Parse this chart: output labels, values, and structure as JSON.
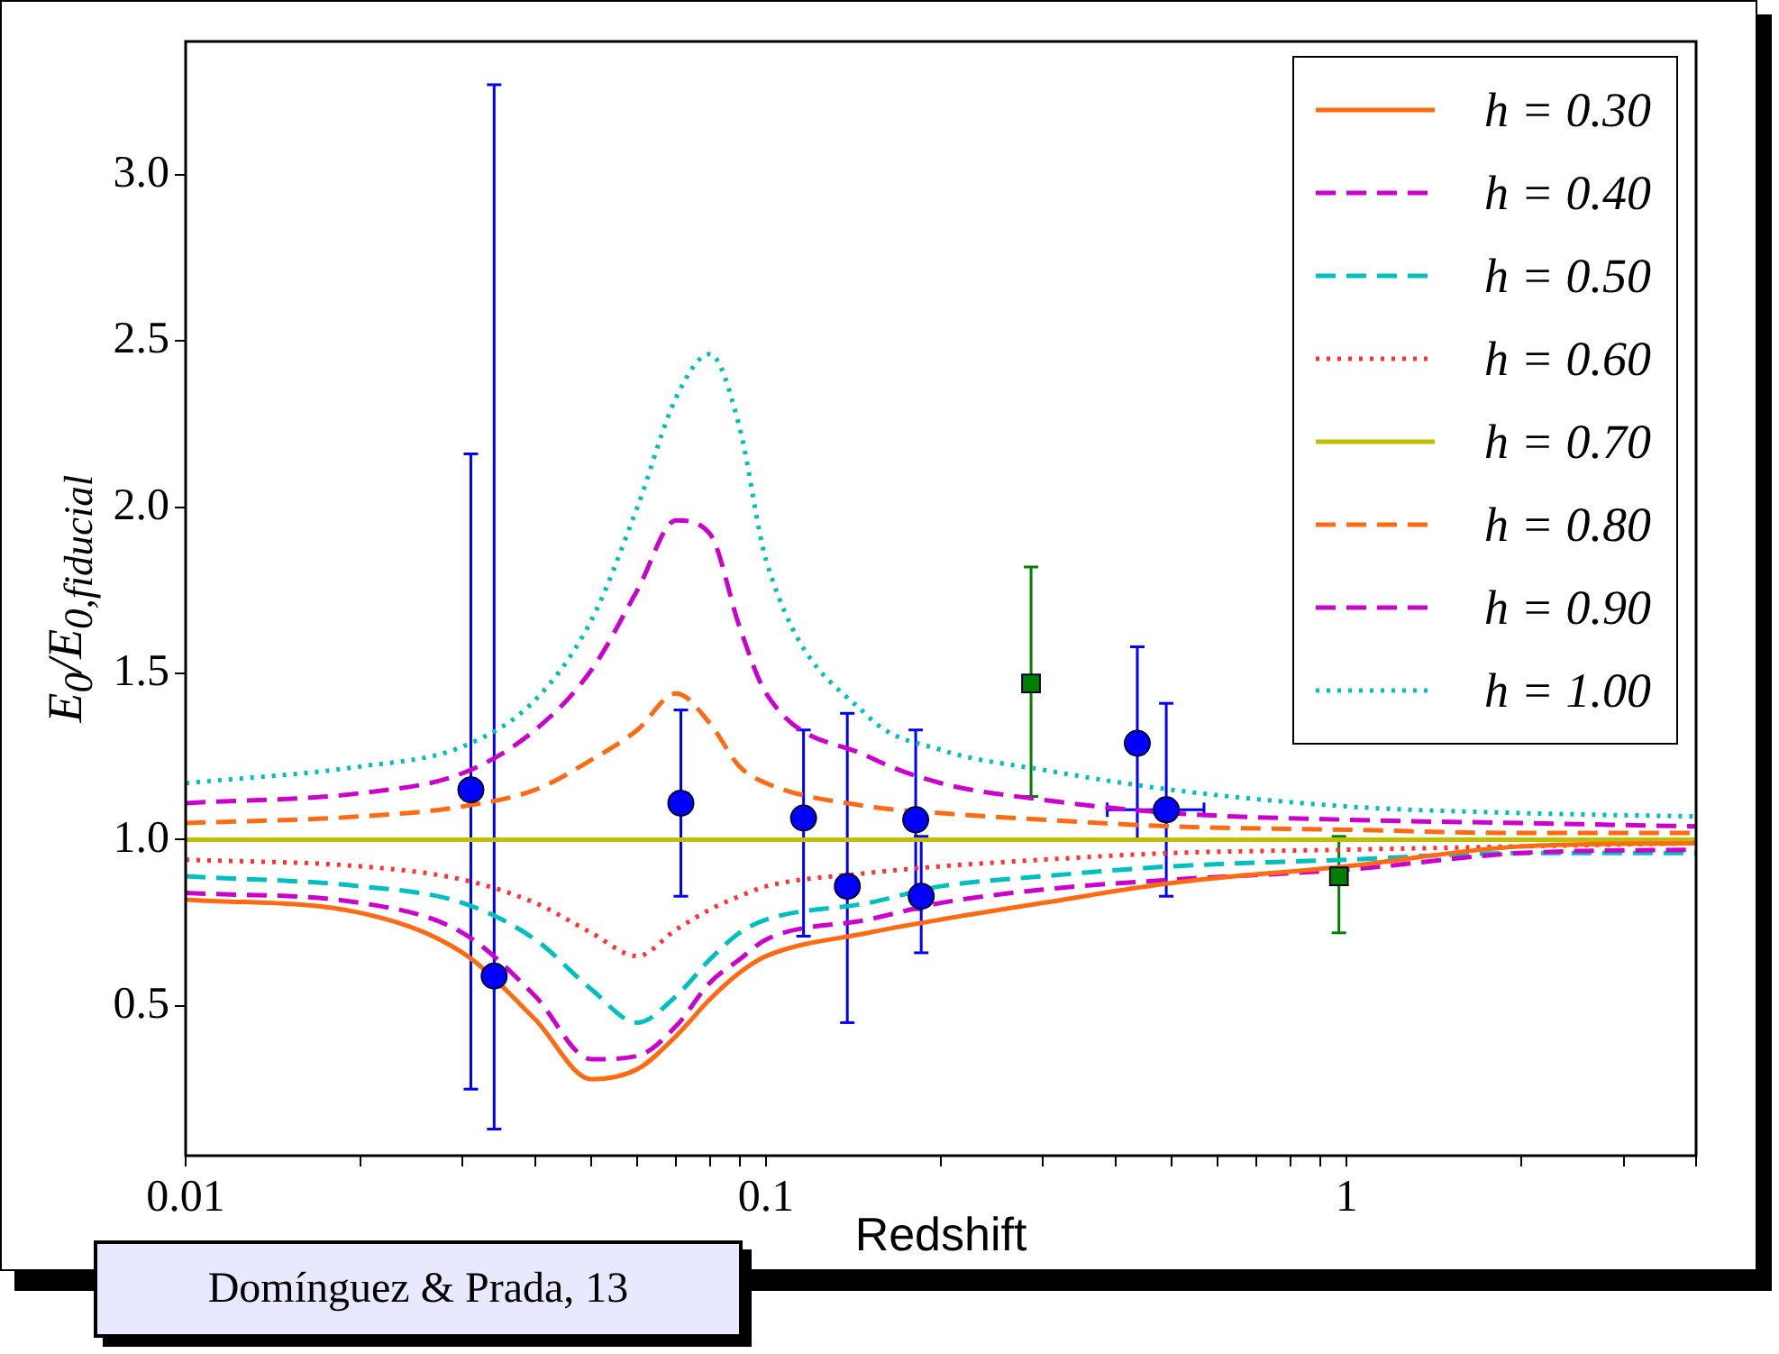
{
  "chart_data": {
    "type": "line",
    "xlabel": "Redshift",
    "ylabel": "E$_{0}$/E$_{0,fiducial}$",
    "log": "x",
    "xlim": [
      0.01,
      4
    ],
    "ylim": [
      0.05,
      3.4
    ],
    "xticks": [
      {
        "value": 0.01,
        "label": "0.01"
      },
      {
        "value": 0.02,
        "label": null
      },
      {
        "value": 0.03,
        "label": null
      },
      {
        "value": 0.04,
        "label": null
      },
      {
        "value": 0.05,
        "label": null
      },
      {
        "value": 0.06,
        "label": null
      },
      {
        "value": 0.07,
        "label": null
      },
      {
        "value": 0.08,
        "label": null
      },
      {
        "value": 0.09,
        "label": null
      },
      {
        "value": 0.1,
        "label": "0.1"
      },
      {
        "value": 0.2,
        "label": null
      },
      {
        "value": 0.3,
        "label": null
      },
      {
        "value": 0.4,
        "label": null
      },
      {
        "value": 0.5,
        "label": null
      },
      {
        "value": 0.6,
        "label": null
      },
      {
        "value": 0.7,
        "label": null
      },
      {
        "value": 0.8,
        "label": null
      },
      {
        "value": 0.9,
        "label": null
      },
      {
        "value": 1,
        "label": "1"
      },
      {
        "value": 2,
        "label": null
      },
      {
        "value": 3,
        "label": null
      },
      {
        "value": 4,
        "label": null
      }
    ],
    "yticks": [
      {
        "value": 0.5,
        "label": "0.5"
      },
      {
        "value": 1,
        "label": "1.0"
      },
      {
        "value": 1.5,
        "label": "1.5"
      },
      {
        "value": 2,
        "label": "2.0"
      },
      {
        "value": 2.5,
        "label": "2.5"
      },
      {
        "value": 3,
        "label": "3.0"
      }
    ],
    "grid": false,
    "legend": "top right",
    "annotations": [
      "Domínguez & Prada, 13"
    ],
    "series": [
      {
        "name": "h = 0.30",
        "color": "#ff6a13",
        "line_style": "solid",
        "marker": "none",
        "x": [
          0.01,
          0.02,
          0.03,
          0.04,
          0.05,
          0.06,
          0.07,
          0.08,
          0.09,
          0.1,
          0.15,
          0.2,
          0.3,
          0.5,
          1,
          2,
          4
        ],
        "values": [
          0.82,
          0.78,
          0.66,
          0.46,
          0.28,
          0.31,
          0.41,
          0.52,
          0.6,
          0.65,
          0.72,
          0.76,
          0.81,
          0.87,
          0.92,
          0.98,
          0.99
        ]
      },
      {
        "name": "h = 0.40",
        "color": "#cc00cc",
        "line_style": "dashed",
        "marker": "none",
        "x": [
          0.01,
          0.02,
          0.03,
          0.04,
          0.05,
          0.06,
          0.07,
          0.08,
          0.09,
          0.1,
          0.15,
          0.2,
          0.3,
          0.5,
          1,
          2,
          4
        ],
        "values": [
          0.84,
          0.81,
          0.72,
          0.53,
          0.34,
          0.35,
          0.44,
          0.57,
          0.64,
          0.7,
          0.76,
          0.81,
          0.85,
          0.88,
          0.91,
          0.96,
          0.97
        ]
      },
      {
        "name": "h = 0.50",
        "color": "#00bfbf",
        "line_style": "dashed",
        "marker": "none",
        "x": [
          0.01,
          0.02,
          0.03,
          0.04,
          0.05,
          0.06,
          0.07,
          0.08,
          0.09,
          0.1,
          0.15,
          0.2,
          0.3,
          0.5,
          1,
          2,
          4
        ],
        "values": [
          0.89,
          0.86,
          0.81,
          0.7,
          0.55,
          0.45,
          0.53,
          0.64,
          0.72,
          0.76,
          0.81,
          0.86,
          0.89,
          0.92,
          0.94,
          0.96,
          0.96
        ]
      },
      {
        "name": "h = 0.60",
        "color": "#ff3333",
        "line_style": "dotted",
        "marker": "none",
        "x": [
          0.01,
          0.02,
          0.03,
          0.04,
          0.05,
          0.06,
          0.07,
          0.08,
          0.09,
          0.1,
          0.15,
          0.2,
          0.3,
          0.5,
          1,
          2,
          4
        ],
        "values": [
          0.94,
          0.92,
          0.88,
          0.81,
          0.72,
          0.65,
          0.73,
          0.79,
          0.83,
          0.86,
          0.9,
          0.92,
          0.94,
          0.96,
          0.97,
          0.98,
          0.99
        ]
      },
      {
        "name": "h = 0.70",
        "color": "#bfbf00",
        "line_style": "solid",
        "marker": "none",
        "x": [
          0.01,
          4
        ],
        "values": [
          1.0,
          1.0
        ]
      },
      {
        "name": "h = 0.80",
        "color": "#ff6a13",
        "line_style": "dashed",
        "marker": "none",
        "x": [
          0.01,
          0.02,
          0.03,
          0.04,
          0.05,
          0.06,
          0.07,
          0.08,
          0.09,
          0.1,
          0.15,
          0.2,
          0.3,
          0.5,
          1,
          2,
          4
        ],
        "values": [
          1.05,
          1.07,
          1.1,
          1.15,
          1.24,
          1.33,
          1.44,
          1.35,
          1.22,
          1.17,
          1.1,
          1.08,
          1.06,
          1.04,
          1.03,
          1.02,
          1.02
        ]
      },
      {
        "name": "h = 0.90",
        "color": "#cc00cc",
        "line_style": "dashed",
        "marker": "none",
        "x": [
          0.01,
          0.02,
          0.03,
          0.04,
          0.05,
          0.06,
          0.07,
          0.08,
          0.09,
          0.1,
          0.15,
          0.2,
          0.3,
          0.5,
          1,
          2,
          4
        ],
        "values": [
          1.11,
          1.14,
          1.2,
          1.33,
          1.51,
          1.75,
          1.96,
          1.92,
          1.64,
          1.44,
          1.25,
          1.17,
          1.12,
          1.08,
          1.06,
          1.05,
          1.04
        ]
      },
      {
        "name": "h = 1.00",
        "color": "#00bfbf",
        "line_style": "dotted",
        "marker": "none",
        "x": [
          0.01,
          0.02,
          0.03,
          0.04,
          0.05,
          0.06,
          0.07,
          0.08,
          0.09,
          0.1,
          0.15,
          0.2,
          0.3,
          0.5,
          1,
          2,
          4
        ],
        "values": [
          1.17,
          1.22,
          1.28,
          1.42,
          1.66,
          2.0,
          2.33,
          2.46,
          2.24,
          1.84,
          1.37,
          1.27,
          1.21,
          1.15,
          1.1,
          1.08,
          1.07
        ]
      },
      {
        "type": "scatter",
        "color": "#0000ff",
        "marker": "circle",
        "x": [
          0.031,
          0.034,
          0.0713,
          0.116,
          0.138,
          0.181,
          0.185,
          0.436,
          0.489
        ],
        "values": [
          1.15,
          0.59,
          1.11,
          1.065,
          0.86,
          1.06,
          0.83,
          1.29,
          1.09
        ],
        "errors": [
          [
            0.25,
            2.16
          ],
          [
            0.13,
            3.27
          ],
          [
            0.83,
            1.39
          ],
          [
            0.71,
            1.33
          ],
          [
            0.45,
            1.38
          ],
          [
            0.79,
            1.33
          ],
          [
            0.66,
            1.01
          ],
          [
            1.0,
            1.58
          ],
          [
            0.83,
            1.41
          ]
        ],
        "xerrors": [
          null,
          null,
          null,
          null,
          null,
          null,
          null,
          null,
          [
            0.387,
            0.568
          ]
        ]
      },
      {
        "type": "scatter",
        "color": "#008000",
        "marker": "square",
        "x": [
          0.286,
          0.97
        ],
        "values": [
          1.47,
          0.89
        ],
        "errors": [
          [
            1.13,
            1.82
          ],
          [
            0.72,
            1.01
          ]
        ]
      }
    ]
  }
}
